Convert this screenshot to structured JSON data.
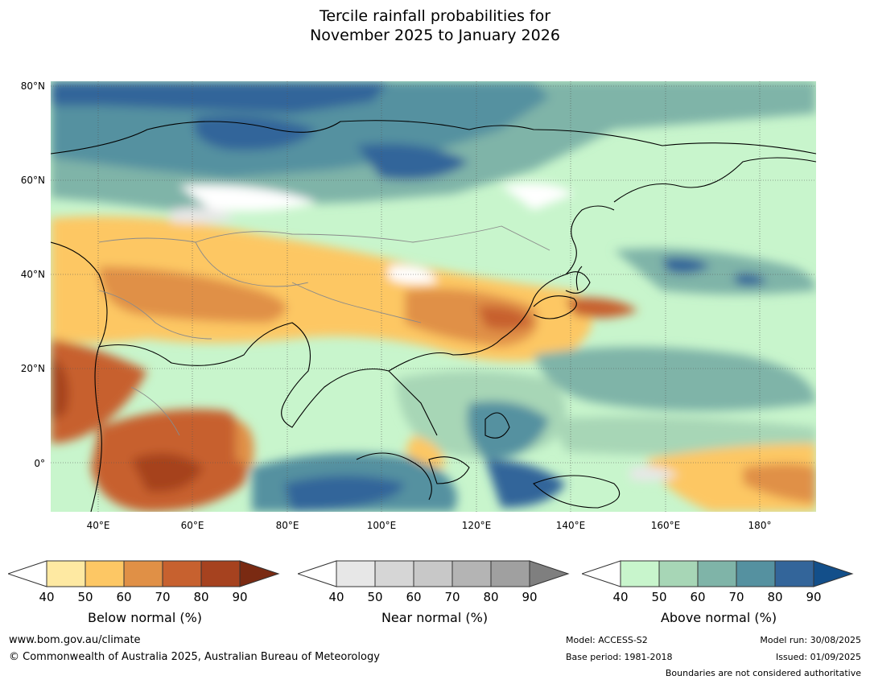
{
  "title": {
    "line1": "Tercile rainfall probabilities for",
    "line2": "November 2025 to January 2026"
  },
  "map": {
    "lat_labels": [
      "80°N",
      "60°N",
      "40°N",
      "20°N",
      "0°"
    ],
    "lon_labels": [
      "40°E",
      "60°E",
      "80°E",
      "100°E",
      "120°E",
      "140°E",
      "160°E",
      "180°"
    ]
  },
  "colorbars": [
    {
      "name": "Below normal (%)",
      "ticks": [
        "40",
        "50",
        "60",
        "70",
        "80",
        "90"
      ],
      "colors": [
        "#ffffff",
        "#fee9a2",
        "#fdc764",
        "#e09046",
        "#c7612f",
        "#a6421f",
        "#7a2a12"
      ]
    },
    {
      "name": "Near normal (%)",
      "ticks": [
        "40",
        "50",
        "60",
        "70",
        "80",
        "90"
      ],
      "colors": [
        "#ffffff",
        "#e7e7e7",
        "#d6d6d6",
        "#c8c8c8",
        "#b4b4b4",
        "#a0a0a0",
        "#7f7f7f"
      ]
    },
    {
      "name": "Above normal (%)",
      "ticks": [
        "40",
        "50",
        "60",
        "70",
        "80",
        "90"
      ],
      "colors": [
        "#ffffff",
        "#c8f5cc",
        "#a7d6b6",
        "#7fb4a8",
        "#5591a0",
        "#33659a",
        "#134f8a"
      ]
    }
  ],
  "footer": {
    "url": "www.bom.gov.au/climate",
    "copyright": "© Commonwealth of Australia 2025, Australian Bureau of Meteorology",
    "model": "Model: ACCESS-S2",
    "base_period": "Base period: 1981-2018",
    "model_run": "Model run: 30/08/2025",
    "issued": "Issued: 01/09/2025",
    "disclaimer": "Boundaries are not considered authoritative"
  }
}
